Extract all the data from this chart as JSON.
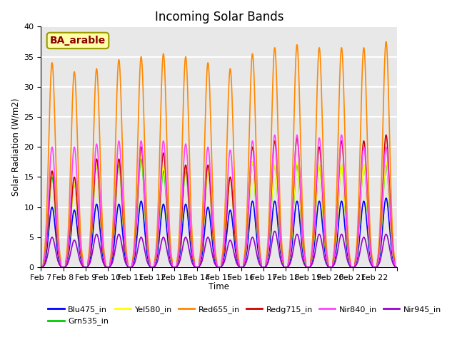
{
  "title": "Incoming Solar Bands",
  "xlabel": "Time",
  "ylabel": "Solar Radiation (W/m2)",
  "annotation": "BA_arable",
  "ylim": [
    0,
    40
  ],
  "series_order": [
    "Blu475_in",
    "Grn535_in",
    "Yel580_in",
    "Red655_in",
    "Redg715_in",
    "Nir840_in",
    "Nir945_in"
  ],
  "series": {
    "Blu475_in": {
      "color": "#0000ff",
      "lw": 1.2
    },
    "Grn535_in": {
      "color": "#00cc00",
      "lw": 1.2
    },
    "Yel580_in": {
      "color": "#ffff00",
      "lw": 1.2
    },
    "Red655_in": {
      "color": "#ff8800",
      "lw": 1.2
    },
    "Redg715_in": {
      "color": "#cc0000",
      "lw": 1.2
    },
    "Nir840_in": {
      "color": "#ff44ff",
      "lw": 1.2
    },
    "Nir945_in": {
      "color": "#9900cc",
      "lw": 1.2
    }
  },
  "xtick_labels": [
    "Feb 7",
    "Feb 8",
    "Feb 9",
    "Feb 10",
    "Feb 11",
    "Feb 12",
    "Feb 13",
    "Feb 14",
    "Feb 15",
    "Feb 16",
    "Feb 17",
    "Feb 18",
    "Feb 19",
    "Feb 20",
    "Feb 21",
    "Feb 22",
    ""
  ],
  "n_days": 16,
  "day_peaks": {
    "Blu475_in": [
      10,
      9.5,
      10.5,
      10.5,
      11,
      10.5,
      10.5,
      10,
      9.5,
      11,
      11,
      11,
      11,
      11,
      11,
      11.5
    ],
    "Grn535_in": [
      15,
      14,
      17,
      17,
      18,
      16,
      16,
      16,
      15,
      17.5,
      17,
      17,
      17,
      17,
      17,
      17
    ],
    "Yel580_in": [
      16,
      14,
      17,
      17.5,
      19,
      17,
      16.5,
      16,
      15,
      17.5,
      17,
      17.5,
      17,
      17,
      17,
      17.5
    ],
    "Red655_in": [
      34,
      32.5,
      33,
      34.5,
      35,
      35.5,
      35,
      34,
      33,
      35.5,
      36.5,
      37,
      36.5,
      36.5,
      36.5,
      37.5
    ],
    "Redg715_in": [
      16,
      15,
      18,
      18,
      20,
      19,
      17,
      17,
      15,
      20,
      21,
      21.5,
      20,
      21,
      21,
      22
    ],
    "Nir840_in": [
      20,
      20,
      20.5,
      21,
      21,
      21,
      20.5,
      20,
      19.5,
      21,
      22,
      22,
      21.5,
      22,
      20,
      20
    ],
    "Nir945_in": [
      5,
      4.5,
      5.5,
      5.5,
      5,
      5,
      5,
      5,
      4.5,
      5,
      6,
      5.5,
      5.5,
      5.5,
      5,
      5.5
    ]
  },
  "pts_per_day": 200,
  "bg_color": "#e8e8e8",
  "grid_color": "#ffffff",
  "annotation_bg": "#ffffaa",
  "annotation_fc": "#8b0000",
  "annotation_edge": "#999900"
}
